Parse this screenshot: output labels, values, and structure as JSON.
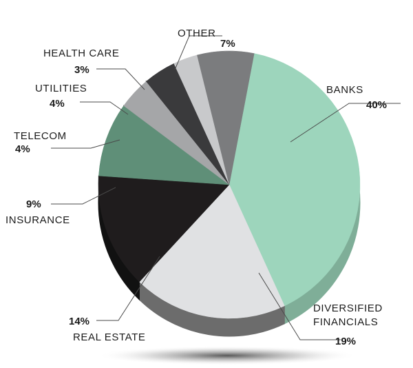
{
  "chart_data": {
    "type": "pie",
    "title": "",
    "legend": "none",
    "slices": [
      {
        "label": "BANKS",
        "label_lines": [
          "BANKS"
        ],
        "value": 40,
        "value_label": "40%",
        "color": "#9dd5bc",
        "side": "#7fae98"
      },
      {
        "label": "DIVERSIFIED FINANCIALS",
        "label_lines": [
          "DIVERSIFIED",
          "FINANCIALS"
        ],
        "value": 19,
        "value_label": "19%",
        "color": "#e0e1e3",
        "side": "#6c6c6c"
      },
      {
        "label": "REAL ESTATE",
        "label_lines": [
          "REAL ESTATE"
        ],
        "value": 14,
        "value_label": "14%",
        "color": "#1f1c1d",
        "side": "#111111"
      },
      {
        "label": "INSURANCE",
        "label_lines": [
          "INSURANCE"
        ],
        "value": 9,
        "value_label": "9%",
        "color": "#5f8f78",
        "side": "#475a50"
      },
      {
        "label": "TELECOM",
        "label_lines": [
          "TELECOM"
        ],
        "value": 4,
        "value_label": "4%",
        "color": "#a5a6a8",
        "side": "#6b6b6b"
      },
      {
        "label": "UTILITIES",
        "label_lines": [
          "UTILITIES"
        ],
        "value": 4,
        "value_label": "4%",
        "color": "#3a3a3c",
        "side": "#222222"
      },
      {
        "label": "HEALTH CARE",
        "label_lines": [
          "HEALTH CARE"
        ],
        "value": 3,
        "value_label": "3%",
        "color": "#c8c9cb",
        "side": "#8a8a8a"
      },
      {
        "label": "OTHER",
        "label_lines": [
          "OTHER"
        ],
        "value": 7,
        "value_label": "7%",
        "color": "#7b7c7e",
        "side": "#5a5a5a"
      }
    ]
  }
}
